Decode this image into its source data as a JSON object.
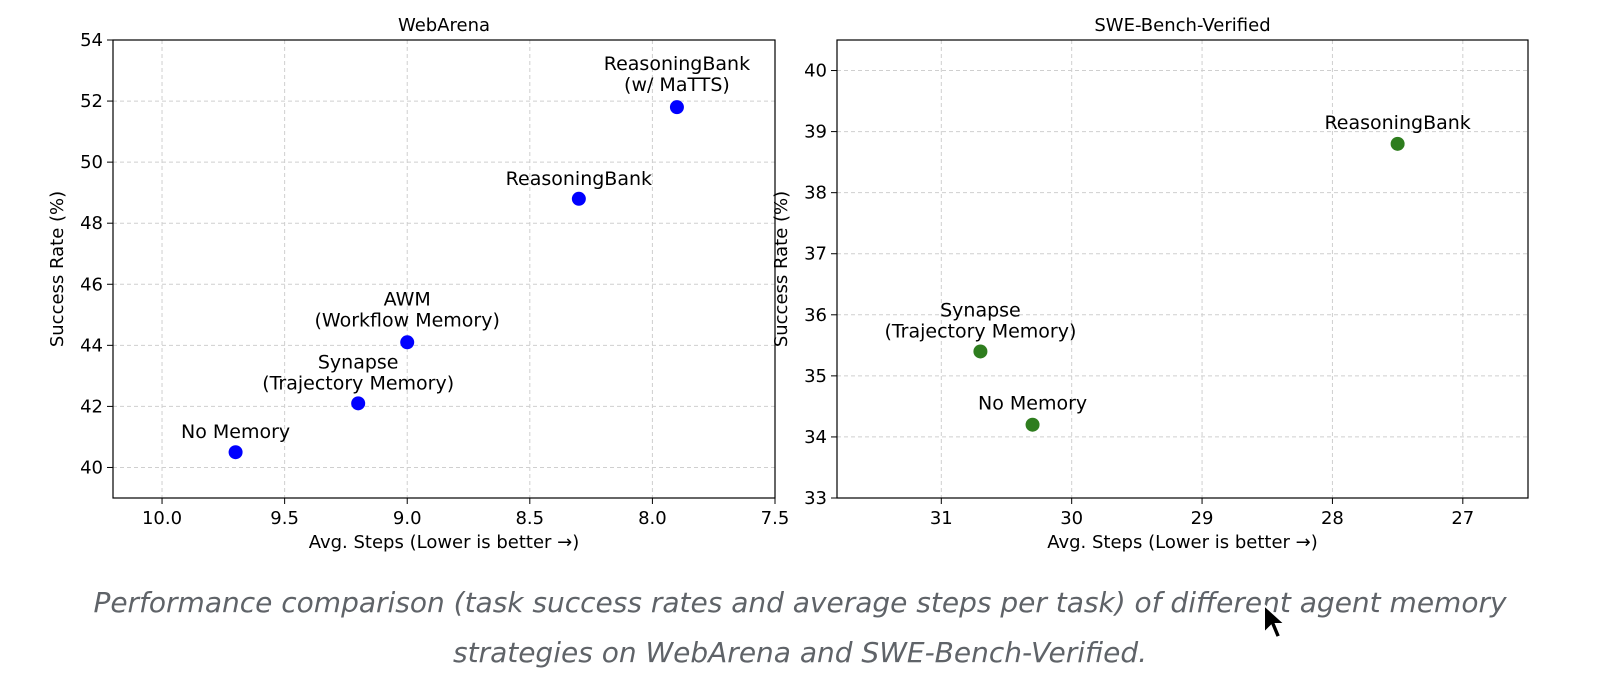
{
  "chart_data": [
    {
      "type": "scatter",
      "title": "WebArena",
      "xlabel": "Avg. Steps (Lower is better →)",
      "ylabel": "Success Rate (%)",
      "xlim": [
        10.2,
        7.5
      ],
      "ylim": [
        39,
        54
      ],
      "x_reversed": true,
      "xticks": [
        "10.0",
        "9.5",
        "9.0",
        "8.5",
        "8.0",
        "7.5"
      ],
      "yticks": [
        "40",
        "42",
        "44",
        "46",
        "48",
        "50",
        "52",
        "54"
      ],
      "grid": true,
      "color": "#0000ff",
      "points": [
        {
          "label": [
            "No Memory"
          ],
          "x": 9.7,
          "y": 40.5
        },
        {
          "label": [
            "Synapse",
            "(Trajectory Memory)"
          ],
          "x": 9.2,
          "y": 42.1
        },
        {
          "label": [
            "AWM",
            "(Workflow Memory)"
          ],
          "x": 9.0,
          "y": 44.1
        },
        {
          "label": [
            "ReasoningBank"
          ],
          "x": 8.3,
          "y": 48.8
        },
        {
          "label": [
            "ReasoningBank",
            "(w/ MaTTS)"
          ],
          "x": 7.9,
          "y": 51.8
        }
      ]
    },
    {
      "type": "scatter",
      "title": "SWE-Bench-Verified",
      "xlabel": "Avg. Steps (Lower is better →)",
      "ylabel": "Success Rate (%)",
      "xlim": [
        31.8,
        26.5
      ],
      "ylim": [
        33,
        40.5
      ],
      "x_reversed": true,
      "xticks": [
        "31",
        "30",
        "29",
        "28",
        "27"
      ],
      "yticks": [
        "33",
        "34",
        "35",
        "36",
        "37",
        "38",
        "39",
        "40"
      ],
      "grid": true,
      "color": "#2e7d1e",
      "points": [
        {
          "label": [
            "No Memory"
          ],
          "x": 30.3,
          "y": 34.2
        },
        {
          "label": [
            "Synapse",
            "(Trajectory Memory)"
          ],
          "x": 30.7,
          "y": 35.4
        },
        {
          "label": [
            "ReasoningBank"
          ],
          "x": 27.5,
          "y": 38.8
        }
      ]
    }
  ],
  "caption": {
    "line1": "Performance comparison (task success rates and average steps per task) of different agent memory",
    "line2": "strategies on WebArena and SWE-Bench-Verified."
  }
}
